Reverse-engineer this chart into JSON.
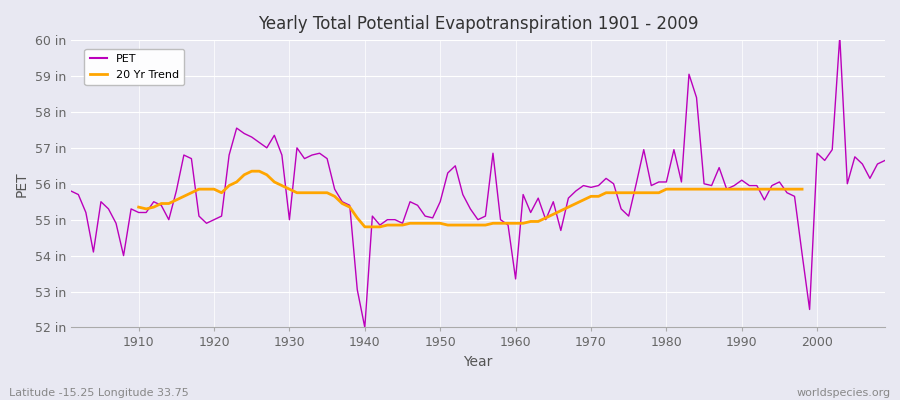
{
  "title": "Yearly Total Potential Evapotranspiration 1901 - 2009",
  "xlabel": "Year",
  "ylabel": "PET",
  "subtitle_left": "Latitude -15.25 Longitude 33.75",
  "subtitle_right": "worldspecies.org",
  "ylim": [
    52,
    60
  ],
  "yticks": [
    52,
    53,
    54,
    55,
    56,
    57,
    58,
    59,
    60
  ],
  "ytick_labels": [
    "52 in",
    "53 in",
    "54 in",
    "55 in",
    "56 in",
    "57 in",
    "58 in",
    "59 in",
    "60 in"
  ],
  "pet_color": "#BB00BB",
  "trend_color": "#FFA500",
  "background_color": "#E8E8F2",
  "years": [
    1901,
    1902,
    1903,
    1904,
    1905,
    1906,
    1907,
    1908,
    1909,
    1910,
    1911,
    1912,
    1913,
    1914,
    1915,
    1916,
    1917,
    1918,
    1919,
    1920,
    1921,
    1922,
    1923,
    1924,
    1925,
    1926,
    1927,
    1928,
    1929,
    1930,
    1931,
    1932,
    1933,
    1934,
    1935,
    1936,
    1937,
    1938,
    1939,
    1940,
    1941,
    1942,
    1943,
    1944,
    1945,
    1946,
    1947,
    1948,
    1949,
    1950,
    1951,
    1952,
    1953,
    1954,
    1955,
    1956,
    1957,
    1958,
    1959,
    1960,
    1961,
    1962,
    1963,
    1964,
    1965,
    1966,
    1967,
    1968,
    1969,
    1970,
    1971,
    1972,
    1973,
    1974,
    1975,
    1976,
    1977,
    1978,
    1979,
    1980,
    1981,
    1982,
    1983,
    1984,
    1985,
    1986,
    1987,
    1988,
    1989,
    1990,
    1991,
    1992,
    1993,
    1994,
    1995,
    1996,
    1997,
    1998,
    1999,
    2000,
    2001,
    2002,
    2003,
    2004,
    2005,
    2006,
    2007,
    2008,
    2009
  ],
  "pet_values": [
    55.8,
    55.7,
    55.2,
    54.1,
    55.5,
    55.3,
    54.9,
    54.0,
    55.3,
    55.2,
    55.2,
    55.5,
    55.4,
    55.0,
    55.8,
    56.8,
    56.7,
    55.1,
    54.9,
    55.0,
    55.1,
    56.8,
    57.55,
    57.4,
    57.3,
    57.15,
    57.0,
    57.35,
    56.8,
    55.0,
    57.0,
    56.7,
    56.8,
    56.85,
    56.7,
    55.85,
    55.5,
    55.4,
    53.05,
    52.0,
    55.1,
    54.85,
    55.0,
    55.0,
    54.9,
    55.5,
    55.4,
    55.1,
    55.05,
    55.5,
    56.3,
    56.5,
    55.7,
    55.3,
    55.0,
    55.1,
    56.85,
    55.0,
    54.85,
    53.35,
    55.7,
    55.2,
    55.6,
    55.0,
    55.5,
    54.7,
    55.6,
    55.8,
    55.95,
    55.9,
    55.95,
    56.15,
    56.0,
    55.3,
    55.1,
    56.0,
    56.95,
    55.95,
    56.05,
    56.05,
    56.95,
    56.05,
    59.05,
    58.4,
    56.0,
    55.95,
    56.45,
    55.85,
    55.95,
    56.1,
    55.95,
    55.95,
    55.55,
    55.95,
    56.05,
    55.75,
    55.65,
    54.05,
    52.5,
    56.85,
    56.65,
    56.95,
    60.1,
    56.0,
    56.75,
    56.55,
    56.15,
    56.55,
    56.65
  ],
  "trend_values": [
    null,
    null,
    null,
    null,
    null,
    null,
    null,
    null,
    null,
    55.35,
    55.3,
    55.35,
    55.45,
    55.45,
    55.55,
    55.65,
    55.75,
    55.85,
    55.85,
    55.85,
    55.75,
    55.95,
    56.05,
    56.25,
    56.35,
    56.35,
    56.25,
    56.05,
    55.95,
    55.85,
    55.75,
    55.75,
    55.75,
    55.75,
    55.75,
    55.65,
    55.45,
    55.35,
    55.05,
    54.8,
    54.8,
    54.8,
    54.85,
    54.85,
    54.85,
    54.9,
    54.9,
    54.9,
    54.9,
    54.9,
    54.85,
    54.85,
    54.85,
    54.85,
    54.85,
    54.85,
    54.9,
    54.9,
    54.9,
    54.9,
    54.9,
    54.95,
    54.95,
    55.05,
    55.15,
    55.25,
    55.35,
    55.45,
    55.55,
    55.65,
    55.65,
    55.75,
    55.75,
    55.75,
    55.75,
    55.75,
    55.75,
    55.75,
    55.75,
    55.85,
    55.85,
    55.85,
    55.85,
    55.85,
    55.85,
    55.85,
    55.85,
    55.85,
    55.85,
    55.85,
    55.85,
    55.85,
    55.85,
    55.85,
    55.85,
    55.85,
    55.85,
    55.85,
    null,
    null,
    null,
    null,
    null,
    null,
    null,
    null,
    null,
    null
  ]
}
